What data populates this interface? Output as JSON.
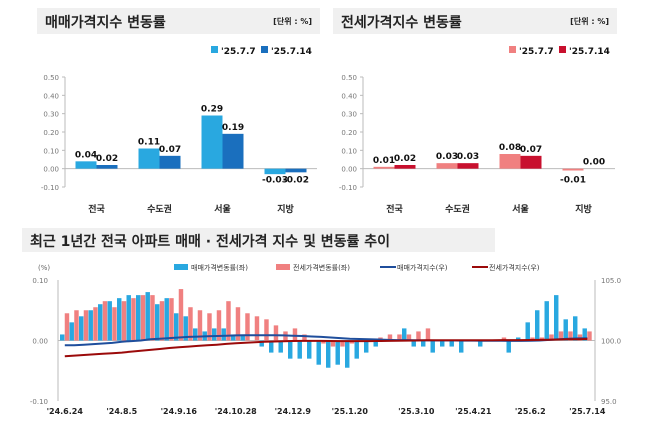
{
  "colors": {
    "sale1": "#29a8e0",
    "sale2": "#1a6fbe",
    "jeonse1": "#f08080",
    "jeonse2": "#c8102e",
    "saleIndex": "#1f4e9c",
    "jeonseIndex": "#9b0a0a",
    "titleBg": "#f0f0f0"
  },
  "chart_data": [
    {
      "type": "bar",
      "title": "매매가격지수 변동률",
      "unit": "[단위 : %]",
      "categories": [
        "전국",
        "수도권",
        "서울",
        "지방"
      ],
      "series": [
        {
          "name": "'25.7.7",
          "values": [
            0.04,
            0.11,
            0.29,
            -0.03
          ]
        },
        {
          "name": "'25.7.14",
          "values": [
            0.02,
            0.07,
            0.19,
            -0.02
          ]
        }
      ],
      "ylim": [
        -0.1,
        0.5
      ],
      "yticks": [
        "0.50",
        "0.40",
        "0.30",
        "0.20",
        "0.10",
        "0.00",
        "-0.10"
      ],
      "value_labels": [
        [
          "0.04",
          "0.11",
          "0.29",
          "-0.03"
        ],
        [
          "0.02",
          "0.07",
          "0.19",
          "-0.02"
        ]
      ]
    },
    {
      "type": "bar",
      "title": "전세가격지수 변동률",
      "unit": "[단위 : %]",
      "categories": [
        "전국",
        "수도권",
        "서울",
        "지방"
      ],
      "series": [
        {
          "name": "'25.7.7",
          "values": [
            0.01,
            0.03,
            0.08,
            -0.01
          ]
        },
        {
          "name": "'25.7.14",
          "values": [
            0.02,
            0.03,
            0.07,
            0.0
          ]
        }
      ],
      "ylim": [
        -0.1,
        0.5
      ],
      "yticks": [
        "0.50",
        "0.40",
        "0.30",
        "0.20",
        "0.10",
        "0.00",
        "-0.10"
      ],
      "value_labels": [
        [
          "0.01",
          "0.03",
          "0.08",
          "-0.01"
        ],
        [
          "0.02",
          "0.03",
          "0.07",
          "0.00"
        ]
      ]
    },
    {
      "type": "bar+line",
      "title": "최근 1년간 전국 아파트 매매 · 전세가격 지수 및 변동률 추이",
      "ylabel": "(%)",
      "ylim": [
        -0.1,
        0.1
      ],
      "y2lim": [
        95,
        105
      ],
      "yticks": [
        "0.10",
        "0.00",
        "-0.10"
      ],
      "y2ticks": [
        "105.0",
        "100.0",
        "95.0"
      ],
      "xticks": [
        "'24.6.24",
        "'24.8.5",
        "'24.9.16",
        "'24.10.28",
        "'24.12.9",
        "'25.1.20",
        "'25.3.10",
        "'25.4.21",
        "'25.6.2",
        "'25.7.14"
      ],
      "series": [
        {
          "name": "매매가격변동률(좌)",
          "kind": "bar",
          "values": [
            0.01,
            0.03,
            0.04,
            0.05,
            0.06,
            0.065,
            0.07,
            0.075,
            0.075,
            0.08,
            0.06,
            0.07,
            0.045,
            0.04,
            0.02,
            0.015,
            0.02,
            0.02,
            0.01,
            0.01,
            0.0,
            -0.01,
            -0.02,
            -0.02,
            -0.03,
            -0.03,
            -0.03,
            -0.04,
            -0.045,
            -0.04,
            -0.045,
            -0.03,
            -0.02,
            -0.01,
            0.0,
            0.0,
            0.02,
            -0.01,
            -0.01,
            -0.02,
            -0.01,
            -0.01,
            -0.02,
            0.0,
            -0.01,
            0.0,
            0.0,
            -0.02,
            0.005,
            0.03,
            0.05,
            0.065,
            0.075,
            0.035,
            0.04,
            0.02
          ]
        },
        {
          "name": "전세가격변동률(좌)",
          "kind": "bar",
          "values": [
            0.045,
            0.05,
            0.05,
            0.055,
            0.065,
            0.055,
            0.065,
            0.07,
            0.075,
            0.075,
            0.065,
            0.07,
            0.085,
            0.055,
            0.05,
            0.045,
            0.05,
            0.065,
            0.055,
            0.045,
            0.04,
            0.035,
            0.025,
            0.015,
            0.02,
            0.01,
            0.0,
            -0.005,
            -0.01,
            -0.01,
            -0.005,
            0.0,
            0.0,
            0.005,
            0.01,
            0.01,
            0.01,
            0.015,
            0.02,
            0.0,
            0.0,
            0.0,
            0.0,
            0.0,
            0.0,
            0.0,
            0.005,
            0.0,
            0.0,
            0.005,
            0.005,
            0.01,
            0.015,
            0.015,
            0.01,
            0.015
          ]
        },
        {
          "name": "매매가격지수(우)",
          "kind": "line",
          "values": [
            99.6,
            99.6,
            99.65,
            99.7,
            99.75,
            99.8,
            99.9,
            99.95,
            100.0,
            100.1,
            100.15,
            100.2,
            100.25,
            100.3,
            100.32,
            100.35,
            100.37,
            100.4,
            100.42,
            100.43,
            100.44,
            100.44,
            100.43,
            100.42,
            100.4,
            100.37,
            100.33,
            100.3,
            100.25,
            100.2,
            100.15,
            100.12,
            100.1,
            100.08,
            100.05,
            100.03,
            100.03,
            100.02,
            100.01,
            100.0,
            100.0,
            100.0,
            99.99,
            99.99,
            99.98,
            99.98,
            99.98,
            99.97,
            99.97,
            99.98,
            100.0,
            100.05,
            100.1,
            100.15,
            100.17,
            100.18
          ]
        },
        {
          "name": "전세가격지수(우)",
          "kind": "line",
          "values": [
            98.7,
            98.75,
            98.8,
            98.85,
            98.9,
            98.95,
            99.0,
            99.08,
            99.15,
            99.22,
            99.3,
            99.38,
            99.45,
            99.5,
            99.55,
            99.6,
            99.65,
            99.72,
            99.78,
            99.82,
            99.86,
            99.9,
            99.92,
            99.94,
            99.96,
            99.97,
            99.97,
            99.97,
            99.96,
            99.95,
            99.95,
            99.95,
            99.95,
            99.96,
            99.97,
            99.98,
            99.99,
            100.0,
            100.02,
            100.02,
            100.02,
            100.02,
            100.02,
            100.02,
            100.02,
            100.02,
            100.03,
            100.03,
            100.03,
            100.04,
            100.05,
            100.06,
            100.08,
            100.1,
            100.11,
            100.12
          ]
        }
      ]
    }
  ]
}
